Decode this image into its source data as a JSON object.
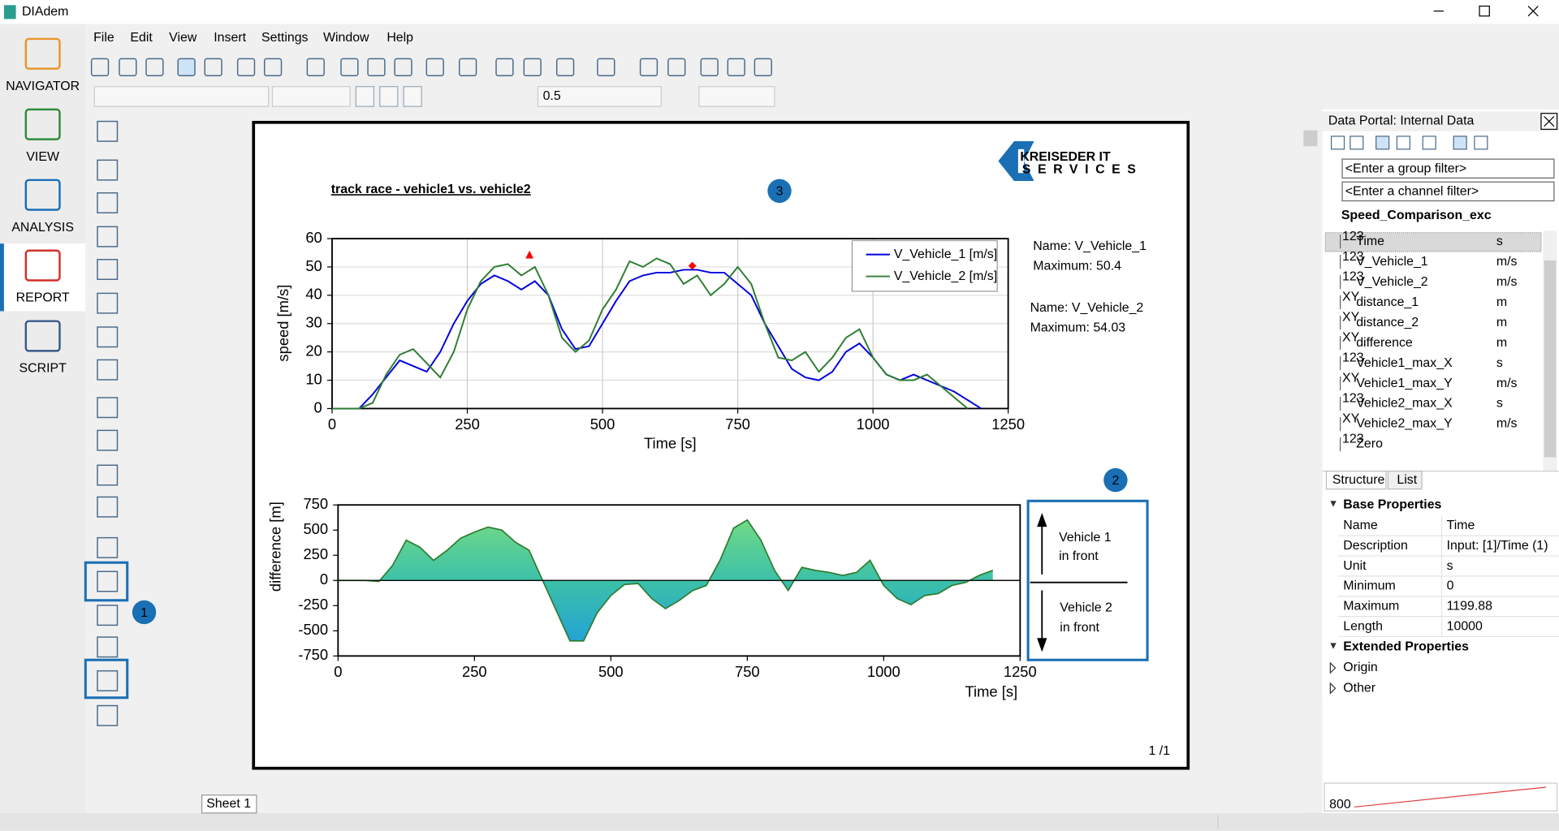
{
  "window": {
    "title": "DIAdem"
  },
  "menu": [
    "File",
    "Edit",
    "View",
    "Insert",
    "Settings",
    "Window",
    "Help"
  ],
  "sidebar": [
    "NAVIGATOR",
    "VIEW",
    "ANALYSIS",
    "REPORT",
    "SCRIPT"
  ],
  "toolbar": {
    "line_width": "0.5"
  },
  "report": {
    "title": "track race - vehicle1 vs. vehicle2",
    "logo": [
      "KREISEDER IT",
      "SERVICES"
    ],
    "badges": [
      "1",
      "2",
      "3"
    ],
    "page": "1 /1",
    "sheet": "Sheet 1",
    "direction_box": [
      "Vehicle 1",
      "in front",
      "Vehicle 2",
      "in front"
    ]
  },
  "chart_data": [
    {
      "type": "line",
      "x_label": "Time [s]",
      "y_label": "speed [m/s]",
      "x": [
        0,
        25,
        50,
        75,
        100,
        125,
        150,
        175,
        200,
        225,
        250,
        275,
        300,
        325,
        350,
        375,
        400,
        425,
        450,
        475,
        500,
        525,
        550,
        575,
        600,
        625,
        650,
        675,
        700,
        725,
        750,
        775,
        800,
        825,
        850,
        875,
        900,
        925,
        950,
        975,
        1000,
        1025,
        1050,
        1075,
        1100,
        1125,
        1150,
        1175,
        1200
      ],
      "series": [
        {
          "name": "V_Vehicle_1 [m/s]",
          "color": "#0000dd",
          "values": [
            0,
            0,
            0,
            5,
            11,
            17,
            15,
            13,
            20,
            30,
            38,
            44,
            47,
            45,
            42,
            45,
            40,
            28,
            21,
            22,
            30,
            38,
            45,
            47,
            48,
            48,
            49,
            49,
            48,
            48,
            44,
            40,
            30,
            22,
            14,
            11,
            10,
            13,
            20,
            23,
            18,
            12,
            10,
            12,
            10,
            8,
            6,
            3,
            0
          ]
        },
        {
          "name": "V_Vehicle_2 [m/s]",
          "color": "#2e7d32",
          "values": [
            0,
            0,
            0,
            2,
            12,
            19,
            21,
            16,
            11,
            20,
            35,
            45,
            50,
            51,
            47,
            50,
            40,
            25,
            20,
            24,
            35,
            42,
            52,
            50,
            53,
            51,
            44,
            47,
            40,
            44,
            50,
            44,
            30,
            18,
            17,
            20,
            13,
            18,
            25,
            28,
            18,
            12,
            10,
            10,
            12,
            8,
            4,
            0,
            null
          ]
        }
      ],
      "xlim": [
        0,
        1250
      ],
      "ylim": [
        0,
        60
      ],
      "xticks": [
        0,
        250,
        500,
        750,
        1000,
        1250
      ],
      "yticks": [
        0,
        10,
        20,
        30,
        40,
        50,
        60
      ],
      "grid": true,
      "legend": "upper right",
      "markers": [
        {
          "x": 365,
          "y": 54.03,
          "shape": "triangle",
          "color": "#ff0000"
        },
        {
          "x": 666,
          "y": 50.4,
          "shape": "diamond",
          "color": "#ff0000"
        }
      ],
      "annotations": [
        [
          "Name: V_Vehicle_1",
          "Maximum: 50.4"
        ],
        [
          "Name: V_Vehicle_2",
          "Maximum: 54.03"
        ]
      ]
    },
    {
      "type": "area",
      "x_label": "Time [s]",
      "y_label": "difference [m]",
      "x": [
        0,
        25,
        50,
        75,
        100,
        125,
        150,
        175,
        200,
        225,
        250,
        275,
        300,
        325,
        350,
        375,
        400,
        425,
        450,
        475,
        500,
        525,
        550,
        575,
        600,
        625,
        650,
        675,
        700,
        725,
        750,
        775,
        800,
        825,
        850,
        875,
        900,
        925,
        950,
        975,
        1000,
        1025,
        1050,
        1075,
        1100,
        1125,
        1150,
        1175,
        1200
      ],
      "values": [
        0,
        0,
        0,
        -10,
        150,
        400,
        330,
        200,
        300,
        420,
        480,
        530,
        500,
        380,
        300,
        0,
        -300,
        -600,
        -600,
        -320,
        -150,
        -40,
        -30,
        -180,
        -280,
        -200,
        -100,
        -50,
        200,
        520,
        600,
        400,
        100,
        -100,
        130,
        100,
        80,
        50,
        80,
        200,
        -50,
        -180,
        -240,
        -150,
        -130,
        -50,
        -20,
        50,
        100
      ],
      "color": "#2e7d32",
      "colors": [
        "#7ee07e",
        "#1e9be0"
      ],
      "xlim": [
        0,
        1250
      ],
      "ylim": [
        -750,
        750
      ],
      "xticks": [
        0,
        250,
        500,
        750,
        1000,
        1250
      ],
      "yticks": [
        -750,
        -500,
        -250,
        0,
        250,
        500,
        750
      ],
      "grid": false
    }
  ],
  "data_portal": {
    "title": "Data Portal: Internal Data",
    "filters": [
      "<Enter a group filter>",
      "<Enter a channel filter>"
    ],
    "group": "Speed_Comparison_exc",
    "channels": [
      {
        "kind": "123",
        "name": "Time",
        "unit": "s"
      },
      {
        "kind": "123",
        "name": "V_Vehicle_1",
        "unit": "m/s"
      },
      {
        "kind": "123",
        "name": "V_Vehicle_2",
        "unit": "m/s"
      },
      {
        "kind": "XY",
        "name": "distance_1",
        "unit": "m"
      },
      {
        "kind": "XY",
        "name": "distance_2",
        "unit": "m"
      },
      {
        "kind": "XY",
        "name": "difference",
        "unit": "m"
      },
      {
        "kind": "123",
        "name": "Vehicle1_max_X",
        "unit": "s"
      },
      {
        "kind": "XY",
        "name": "Vehicle1_max_Y",
        "unit": "m/s"
      },
      {
        "kind": "123",
        "name": "Vehicle2_max_X",
        "unit": "s"
      },
      {
        "kind": "XY",
        "name": "Vehicle2_max_Y",
        "unit": "m/s"
      },
      {
        "kind": "123",
        "name": "Zero"
      }
    ],
    "tabs": [
      "Structure",
      "List"
    ],
    "base_properties": {
      "title": "Base Properties",
      "rows": [
        {
          "name": "Name",
          "value": "Time"
        },
        {
          "name": "Description",
          "value": "Input: [1]/Time (1)"
        },
        {
          "name": "Unit",
          "value": "s"
        },
        {
          "name": "Minimum",
          "value": "0",
          "read_only": true
        },
        {
          "name": "Maximum",
          "value": "1199.88",
          "read_only": true
        },
        {
          "name": "Length",
          "value": "10000"
        }
      ]
    },
    "extended_properties": {
      "title": "Extended Properties",
      "groups": [
        "Origin",
        "Other"
      ]
    },
    "preview_label": "800"
  }
}
